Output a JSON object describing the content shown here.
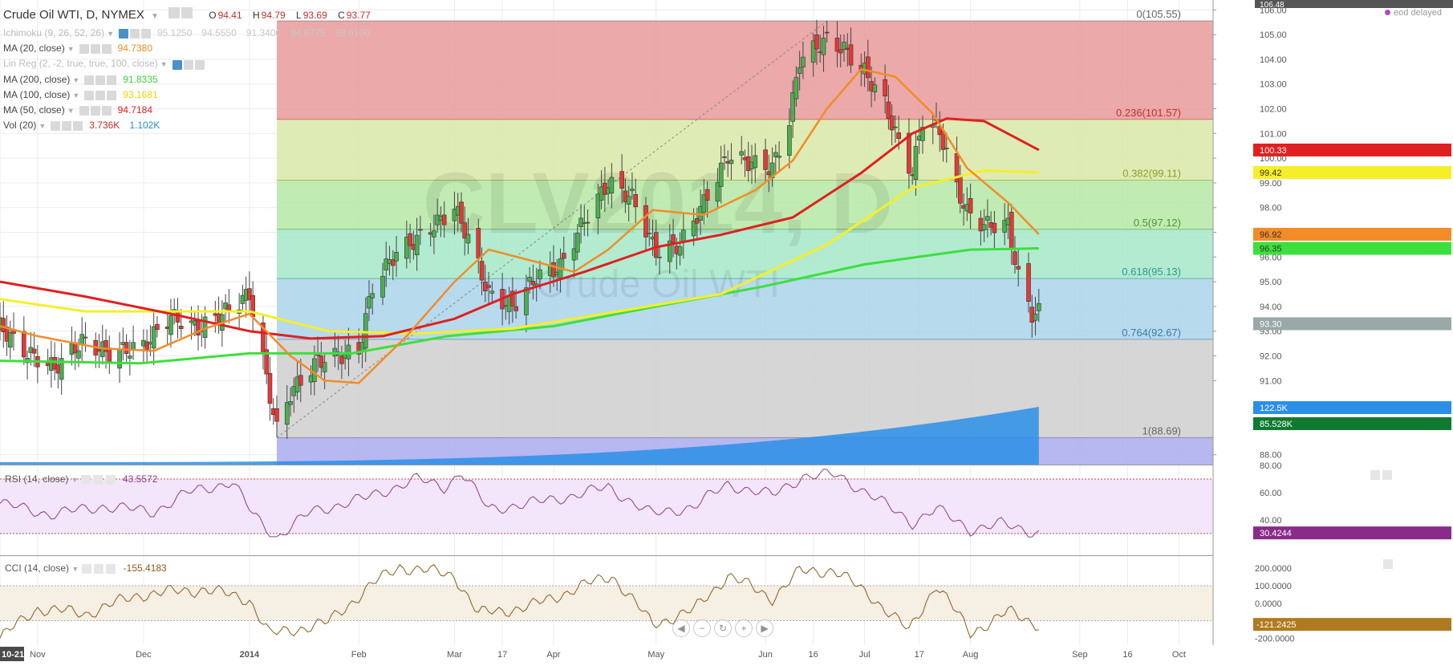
{
  "legend": {
    "symbol": "Crude Oil WTI, D, NYMEX",
    "ohlc": {
      "o_label": "O",
      "o": "94.41",
      "h_label": "H",
      "h": "94.79",
      "l_label": "L",
      "l": "93.69",
      "c_label": "C",
      "c": "93.77"
    },
    "rows": [
      {
        "name": "Ichimoku (9, 26, 52, 26)",
        "values": [
          "95.1250",
          "94.5550",
          "91.3400",
          "94.6775",
          "93.6100"
        ],
        "color": "#c8c8c8",
        "muted": true
      },
      {
        "name": "MA (20, close)",
        "values": [
          "94.7380"
        ],
        "color": "#f28c28",
        "muted": false
      },
      {
        "name": "Lin Reg (2, -2, true, true, 100, close)",
        "values": [],
        "color": "#c8c8c8",
        "muted": true
      },
      {
        "name": "MA (200, close)",
        "values": [
          "91.8335"
        ],
        "color": "#3ccf3c",
        "muted": false
      },
      {
        "name": "MA (100, close)",
        "values": [
          "93.1681"
        ],
        "color": "#e6d800",
        "muted": false
      },
      {
        "name": "MA (50, close)",
        "values": [
          "94.7184"
        ],
        "color": "#e02020",
        "muted": false
      },
      {
        "name": "Vol (20)",
        "values": [
          "3.736K",
          "1.102K"
        ],
        "colors": [
          "#c03030",
          "#2a8ad8"
        ],
        "muted": false
      }
    ]
  },
  "eod_label": "eod delayed",
  "watermark": {
    "main": "CLV2014, D",
    "sub": "Crude Oil WTI"
  },
  "colors": {
    "up": "#4caf50",
    "down": "#e53935",
    "ma20": "#f28c28",
    "ma50": "#e02020",
    "ma100": "#f5ef2a",
    "ma200": "#3ce03c",
    "volume": "#2b8fe8",
    "rsi": "#8a3c8a",
    "cci": "#8a5a1a"
  },
  "chart_data": [
    {
      "type": "candlestick",
      "title": "Crude Oil WTI, D, NYMEX",
      "ylim": [
        87.6,
        106.4
      ],
      "y_ticks": [
        "88.00",
        "91.00",
        "92.00",
        "93.00",
        "94.00",
        "95.00",
        "96.00",
        "97.00",
        "98.00",
        "99.00",
        "100.00",
        "101.00",
        "102.00",
        "103.00",
        "104.00",
        "105.00",
        "106.00"
      ],
      "y_top_label": "106.48",
      "x_ticks": [
        {
          "label": "10-21",
          "date": "2013-10-21",
          "highlight": true
        },
        {
          "label": "Nov",
          "date": "2013-11-01"
        },
        {
          "label": "Dec",
          "date": "2013-12-02"
        },
        {
          "label": "2014",
          "date": "2014-01-02",
          "bold": true
        },
        {
          "label": "Feb",
          "date": "2014-02-03"
        },
        {
          "label": "Mar",
          "date": "2014-03-03"
        },
        {
          "label": "17",
          "date": "2014-03-17"
        },
        {
          "label": "Apr",
          "date": "2014-04-01"
        },
        {
          "label": "May",
          "date": "2014-05-01"
        },
        {
          "label": "Jun",
          "date": "2014-06-02"
        },
        {
          "label": "16",
          "date": "2014-06-16"
        },
        {
          "label": "Jul",
          "date": "2014-07-01"
        },
        {
          "label": "17",
          "date": "2014-07-17"
        },
        {
          "label": "Aug",
          "date": "2014-08-01"
        },
        {
          "label": "Sep",
          "date": "2014-09-02"
        },
        {
          "label": "16",
          "date": "2014-09-16"
        },
        {
          "label": "Oct",
          "date": "2014-10-01"
        }
      ],
      "x_range": [
        "2013-10-21",
        "2014-10-11"
      ],
      "fibonacci": {
        "start_date": "2014-01-10",
        "levels": [
          {
            "label": "0(105.55)",
            "price": 105.55,
            "color": "#e89a9a"
          },
          {
            "label": "0.236(101.57)",
            "price": 101.57,
            "color": "#d9e8a8"
          },
          {
            "label": "0.382(99.11)",
            "price": 99.11,
            "color": "#b5e8a5"
          },
          {
            "label": "0.5(97.12)",
            "price": 97.12,
            "color": "#a5e8c8"
          },
          {
            "label": "0.618(95.13)",
            "price": 95.13,
            "color": "#aad4ea"
          },
          {
            "label": "0.764(92.67)",
            "price": 92.67,
            "color": "#cfcfcf"
          },
          {
            "label": "1(88.69)",
            "price": 88.69,
            "color": "#aaaaee"
          }
        ],
        "label_colors": [
          "#666",
          "#c03030",
          "#8aa020",
          "#4a9a30",
          "#2a9a8a",
          "#3a7ab0",
          "#666"
        ]
      },
      "trend_line": {
        "from": {
          "date": "2014-01-10",
          "price": 88.69
        },
        "to": {
          "date": "2014-06-20",
          "price": 105.55
        }
      },
      "series_keypoints": {
        "close": [
          [
            "2013-10-21",
            93.2
          ],
          [
            "2013-10-28",
            92.2
          ],
          [
            "2013-11-06",
            91.5
          ],
          [
            "2013-11-14",
            92.6
          ],
          [
            "2013-11-22",
            92.1
          ],
          [
            "2013-12-02",
            92.4
          ],
          [
            "2013-12-10",
            93.6
          ],
          [
            "2013-12-18",
            93.1
          ],
          [
            "2013-12-24",
            93.6
          ],
          [
            "2014-01-02",
            94.5
          ],
          [
            "2014-01-06",
            91.8
          ],
          [
            "2014-01-10",
            89.0
          ],
          [
            "2014-01-14",
            90.5
          ],
          [
            "2014-01-22",
            91.8
          ],
          [
            "2014-02-03",
            92.2
          ],
          [
            "2014-02-07",
            94.8
          ],
          [
            "2014-02-14",
            96.2
          ],
          [
            "2014-02-21",
            96.8
          ],
          [
            "2014-03-03",
            98.0
          ],
          [
            "2014-03-07",
            96.8
          ],
          [
            "2014-03-13",
            94.5
          ],
          [
            "2014-03-20",
            94.0
          ],
          [
            "2014-03-27",
            95.2
          ],
          [
            "2014-04-03",
            95.6
          ],
          [
            "2014-04-10",
            97.5
          ],
          [
            "2014-04-17",
            99.0
          ],
          [
            "2014-04-24",
            98.4
          ],
          [
            "2014-05-01",
            96.2
          ],
          [
            "2014-05-08",
            96.5
          ],
          [
            "2014-05-15",
            98.2
          ],
          [
            "2014-05-22",
            100.1
          ],
          [
            "2014-05-29",
            99.8
          ],
          [
            "2014-06-04",
            99.6
          ],
          [
            "2014-06-09",
            101.5
          ],
          [
            "2014-06-12",
            104.0
          ],
          [
            "2014-06-20",
            104.8
          ],
          [
            "2014-06-25",
            104.4
          ],
          [
            "2014-07-01",
            103.5
          ],
          [
            "2014-07-07",
            102.2
          ],
          [
            "2014-07-11",
            100.6
          ],
          [
            "2014-07-15",
            99.4
          ],
          [
            "2014-07-18",
            101.6
          ],
          [
            "2014-07-23",
            101.1
          ],
          [
            "2014-07-28",
            98.8
          ],
          [
            "2014-07-31",
            97.8
          ],
          [
            "2014-08-05",
            97.3
          ],
          [
            "2014-08-12",
            97.3
          ],
          [
            "2014-08-15",
            95.2
          ],
          [
            "2014-08-19",
            93.7
          ],
          [
            "2014-08-21",
            93.77
          ]
        ],
        "ma20": [
          [
            "2013-10-21",
            93.2
          ],
          [
            "2013-11-01",
            92.8
          ],
          [
            "2013-11-20",
            92.3
          ],
          [
            "2013-12-05",
            92.2
          ],
          [
            "2013-12-20",
            93.1
          ],
          [
            "2014-01-02",
            93.7
          ],
          [
            "2014-01-14",
            92.0
          ],
          [
            "2014-01-24",
            91.0
          ],
          [
            "2014-02-03",
            90.9
          ],
          [
            "2014-02-17",
            92.8
          ],
          [
            "2014-03-03",
            95.0
          ],
          [
            "2014-03-13",
            96.3
          ],
          [
            "2014-03-27",
            95.8
          ],
          [
            "2014-04-07",
            95.4
          ],
          [
            "2014-04-17",
            96.3
          ],
          [
            "2014-04-30",
            97.9
          ],
          [
            "2014-05-15",
            97.7
          ],
          [
            "2014-05-30",
            98.7
          ],
          [
            "2014-06-10",
            99.9
          ],
          [
            "2014-06-20",
            102.0
          ],
          [
            "2014-06-30",
            103.6
          ],
          [
            "2014-07-10",
            103.3
          ],
          [
            "2014-07-21",
            101.8
          ],
          [
            "2014-07-31",
            99.6
          ],
          [
            "2014-08-12",
            98.2
          ],
          [
            "2014-08-21",
            96.92
          ]
        ],
        "ma50": [
          [
            "2013-10-21",
            95.0
          ],
          [
            "2013-11-15",
            94.4
          ],
          [
            "2013-12-10",
            93.7
          ],
          [
            "2014-01-02",
            93.0
          ],
          [
            "2014-01-20",
            92.7
          ],
          [
            "2014-02-10",
            92.8
          ],
          [
            "2014-03-03",
            93.5
          ],
          [
            "2014-03-20",
            94.5
          ],
          [
            "2014-04-10",
            95.4
          ],
          [
            "2014-05-01",
            96.4
          ],
          [
            "2014-05-20",
            96.9
          ],
          [
            "2014-06-10",
            97.6
          ],
          [
            "2014-06-30",
            99.4
          ],
          [
            "2014-07-15",
            101.0
          ],
          [
            "2014-07-25",
            101.6
          ],
          [
            "2014-08-05",
            101.5
          ],
          [
            "2014-08-21",
            100.33
          ]
        ],
        "ma100": [
          [
            "2013-10-21",
            94.3
          ],
          [
            "2013-11-15",
            93.8
          ],
          [
            "2013-12-15",
            93.8
          ],
          [
            "2014-01-02",
            93.8
          ],
          [
            "2014-01-25",
            93.0
          ],
          [
            "2014-02-20",
            92.9
          ],
          [
            "2014-03-20",
            93.1
          ],
          [
            "2014-04-20",
            93.8
          ],
          [
            "2014-05-20",
            94.5
          ],
          [
            "2014-06-20",
            96.5
          ],
          [
            "2014-07-15",
            98.8
          ],
          [
            "2014-08-05",
            99.5
          ],
          [
            "2014-08-21",
            99.42
          ]
        ],
        "ma200": [
          [
            "2013-10-21",
            91.8
          ],
          [
            "2013-12-01",
            91.7
          ],
          [
            "2014-01-02",
            92.1
          ],
          [
            "2014-02-01",
            92.1
          ],
          [
            "2014-03-01",
            92.8
          ],
          [
            "2014-04-01",
            93.2
          ],
          [
            "2014-05-01",
            94.0
          ],
          [
            "2014-06-01",
            94.8
          ],
          [
            "2014-07-01",
            95.7
          ],
          [
            "2014-08-01",
            96.3
          ],
          [
            "2014-08-21",
            96.35
          ]
        ]
      },
      "price_labels": [
        {
          "label": "100.33",
          "price": 100.33,
          "color": "#e02020",
          "text": "#ffffff"
        },
        {
          "label": "99.42",
          "price": 99.42,
          "color": "#f5ef2a",
          "text": "#333333"
        },
        {
          "label": "96.92",
          "price": 96.92,
          "color": "#f28c28",
          "text": "#333333"
        },
        {
          "label": "96.35",
          "price": 96.35,
          "color": "#3ce03c",
          "text": "#333333"
        },
        {
          "label": "93.30",
          "price": 93.3,
          "color": "#9aa8a8",
          "text": "#ffffff"
        }
      ],
      "volume_labels": [
        {
          "label": "122.5K",
          "color": "#2b8fe8",
          "text": "#ffffff"
        },
        {
          "label": "85.528K",
          "color": "#107a30",
          "text": "#ffffff"
        }
      ]
    },
    {
      "type": "line",
      "title": "RSI (14, close)",
      "value_label": "43.5572",
      "ylim": [
        14,
        80
      ],
      "y_ticks": [
        "80.00",
        "60.00",
        "40.00"
      ],
      "bands": [
        70,
        30
      ],
      "last_label": "30.4244",
      "points": [
        [
          "2013-10-21",
          52
        ],
        [
          "2013-11-05",
          44
        ],
        [
          "2013-11-20",
          50
        ],
        [
          "2013-12-05",
          46
        ],
        [
          "2013-12-15",
          60
        ],
        [
          "2013-12-28",
          68
        ],
        [
          "2014-01-03",
          44
        ],
        [
          "2014-01-10",
          27
        ],
        [
          "2014-01-20",
          46
        ],
        [
          "2014-02-05",
          56
        ],
        [
          "2014-02-20",
          70
        ],
        [
          "2014-02-28",
          64
        ],
        [
          "2014-03-05",
          75
        ],
        [
          "2014-03-13",
          48
        ],
        [
          "2014-03-25",
          52
        ],
        [
          "2014-04-07",
          58
        ],
        [
          "2014-04-17",
          64
        ],
        [
          "2014-04-30",
          44
        ],
        [
          "2014-05-12",
          50
        ],
        [
          "2014-05-22",
          66
        ],
        [
          "2014-06-04",
          58
        ],
        [
          "2014-06-13",
          72
        ],
        [
          "2014-06-23",
          73
        ],
        [
          "2014-07-03",
          58
        ],
        [
          "2014-07-15",
          38
        ],
        [
          "2014-07-22",
          48
        ],
        [
          "2014-08-01",
          33
        ],
        [
          "2014-08-10",
          37
        ],
        [
          "2014-08-21",
          30.4
        ]
      ]
    },
    {
      "type": "line",
      "title": "CCI (14, close)",
      "value_label": "-155.4183",
      "ylim": [
        -240,
        270
      ],
      "y_ticks": [
        "200.0000",
        "100.0000",
        "0.0000",
        "-200.0000"
      ],
      "bands": [
        100,
        -100
      ],
      "last_label": "-121.2425",
      "points": [
        [
          "2013-10-21",
          -200
        ],
        [
          "2013-11-01",
          -30
        ],
        [
          "2013-11-15",
          -60
        ],
        [
          "2013-12-01",
          50
        ],
        [
          "2013-12-20",
          80
        ],
        [
          "2014-01-02",
          20
        ],
        [
          "2014-01-08",
          -180
        ],
        [
          "2014-01-25",
          -110
        ],
        [
          "2014-02-07",
          110
        ],
        [
          "2014-02-15",
          210
        ],
        [
          "2014-03-03",
          160
        ],
        [
          "2014-03-10",
          -60
        ],
        [
          "2014-03-25",
          -20
        ],
        [
          "2014-04-07",
          80
        ],
        [
          "2014-04-18",
          160
        ],
        [
          "2014-04-30",
          -120
        ],
        [
          "2014-05-12",
          -40
        ],
        [
          "2014-05-22",
          160
        ],
        [
          "2014-06-04",
          30
        ],
        [
          "2014-06-12",
          180
        ],
        [
          "2014-06-22",
          190
        ],
        [
          "2014-07-03",
          40
        ],
        [
          "2014-07-14",
          -160
        ],
        [
          "2014-07-22",
          110
        ],
        [
          "2014-08-01",
          -170
        ],
        [
          "2014-08-12",
          -50
        ],
        [
          "2014-08-21",
          -121.2
        ]
      ]
    }
  ]
}
